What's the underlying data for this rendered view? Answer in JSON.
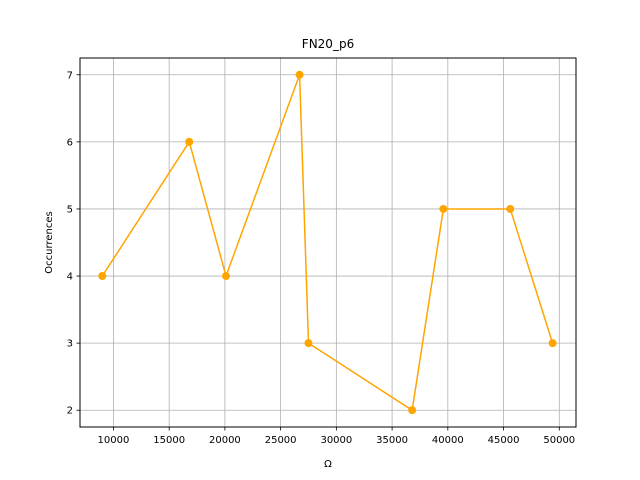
{
  "chart_data": {
    "type": "line",
    "title": "FN20_p6",
    "xlabel": "Ω",
    "ylabel": "Occurrences",
    "x": [
      9000,
      16800,
      20100,
      26700,
      27500,
      36800,
      39600,
      45600,
      49400
    ],
    "series": [
      {
        "values": [
          4,
          6,
          4,
          7,
          3,
          2,
          5,
          5,
          3
        ],
        "color": "#ffa500",
        "marker": "circle"
      }
    ],
    "xlim": [
      7000,
      51500
    ],
    "ylim": [
      1.75,
      7.25
    ],
    "xticks": [
      10000,
      15000,
      20000,
      25000,
      30000,
      35000,
      40000,
      45000,
      50000
    ],
    "yticks": [
      2,
      3,
      4,
      5,
      6,
      7
    ],
    "grid": true,
    "colors": {
      "grid": "#b0b0b0",
      "axes": "#000000",
      "line": "#ffa500"
    }
  }
}
